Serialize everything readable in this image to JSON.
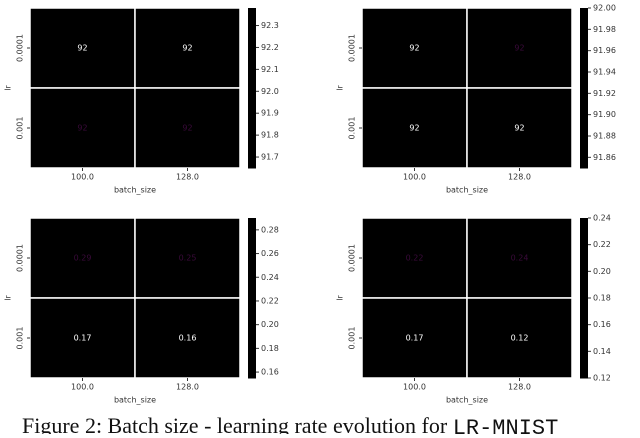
{
  "chart_data": [
    {
      "type": "heatmap",
      "x_label": "batch_size",
      "y_label": "lr",
      "x_categories": [
        "100.0",
        "128.0"
      ],
      "y_categories": [
        "0.0001",
        "0.001"
      ],
      "values": [
        [
          91.65,
          91.65
        ],
        [
          92.15,
          92.35
        ]
      ],
      "value_labels": [
        [
          "92",
          "92"
        ],
        [
          "92",
          "92"
        ]
      ],
      "colormap": "rocket",
      "clim": [
        91.65,
        92.38
      ],
      "cticks": [
        91.7,
        91.8,
        91.9,
        {
          "value": 92,
          "label": "92.0"
        },
        92.1,
        92.2,
        92.3
      ]
    },
    {
      "type": "heatmap",
      "x_label": "batch_size",
      "y_label": "lr",
      "x_categories": [
        "100.0",
        "128.0"
      ],
      "y_categories": [
        "0.0001",
        "0.001"
      ],
      "values": [
        [
          91.85,
          91.97
        ],
        [
          91.86,
          91.86
        ]
      ],
      "value_labels": [
        [
          "92",
          "92"
        ],
        [
          "92",
          "92"
        ]
      ],
      "colormap": "rocket",
      "clim": [
        91.85,
        92.0
      ],
      "cticks": [
        91.86,
        91.88,
        {
          "value": 91.9,
          "label": "91.90"
        },
        91.92,
        91.94,
        91.96,
        91.98,
        {
          "value": 92,
          "label": "92.00"
        }
      ]
    },
    {
      "type": "heatmap",
      "x_label": "batch_size",
      "y_label": "lr",
      "x_categories": [
        "100.0",
        "128.0"
      ],
      "y_categories": [
        "0.0001",
        "0.001"
      ],
      "values": [
        [
          0.29,
          0.25
        ],
        [
          0.17,
          0.16
        ]
      ],
      "colormap": "rocket",
      "clim": [
        0.155,
        0.29
      ],
      "cticks": [
        0.16,
        0.18,
        {
          "value": 0.2,
          "label": "0.20"
        },
        0.22,
        0.24,
        0.26,
        0.28
      ]
    },
    {
      "type": "heatmap",
      "x_label": "batch_size",
      "y_label": "lr",
      "x_categories": [
        "100.0",
        "128.0"
      ],
      "y_categories": [
        "0.0001",
        "0.001"
      ],
      "values": [
        [
          0.22,
          0.24
        ],
        [
          0.17,
          0.12
        ]
      ],
      "colormap": "rocket",
      "clim": [
        0.12,
        0.24
      ],
      "cticks": [
        0.12,
        0.14,
        0.16,
        0.18,
        {
          "value": 0.2,
          "label": "0.20"
        },
        0.22,
        0.24
      ]
    }
  ],
  "caption": {
    "text": "Figure 2: Batch size - learning rate evolution for",
    "code": "LR-MNIST"
  }
}
